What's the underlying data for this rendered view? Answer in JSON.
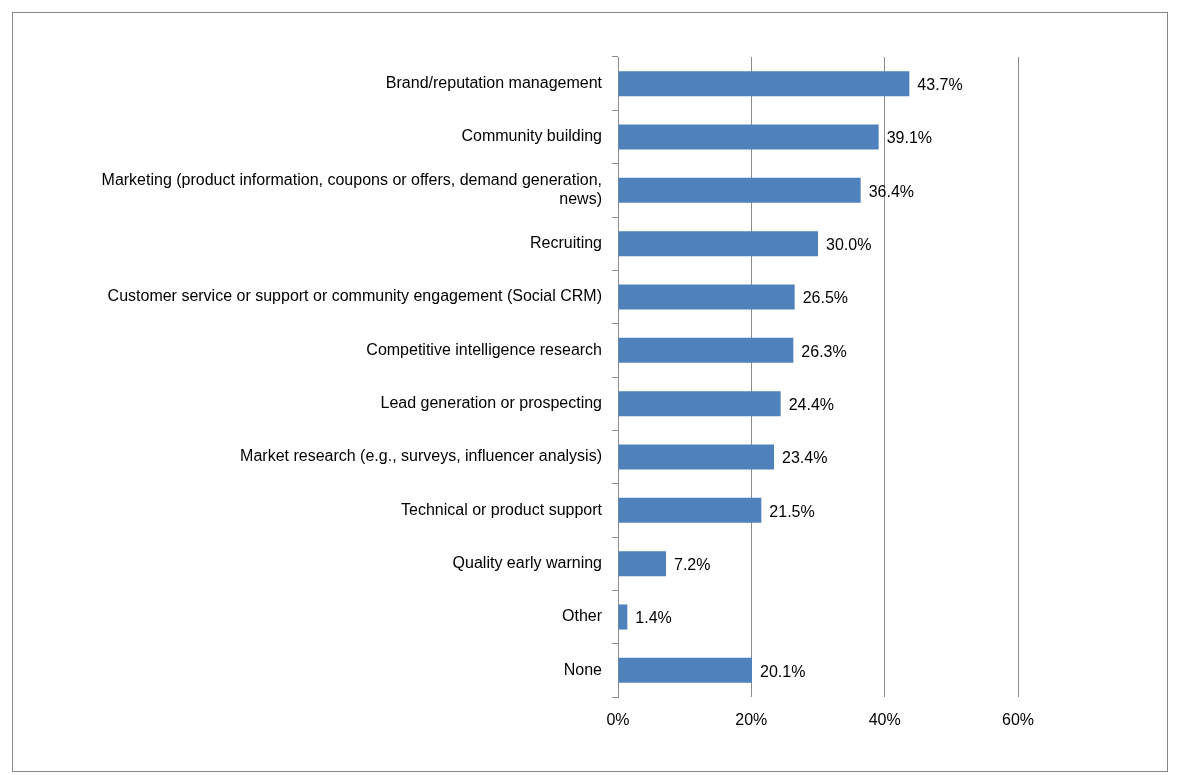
{
  "chart_data": {
    "type": "bar",
    "orientation": "horizontal",
    "categories": [
      "Brand/reputation management",
      "Community building",
      "Marketing (product information, coupons or offers, demand generation, news)",
      "Recruiting",
      "Customer service or support or community engagement (Social CRM)",
      "Competitive intelligence research",
      "Lead generation or prospecting",
      "Market research (e.g., surveys, influencer analysis)",
      "Technical or product support",
      "Quality early warning",
      "Other",
      "None"
    ],
    "values": [
      43.7,
      39.1,
      36.4,
      30.0,
      26.5,
      26.3,
      24.4,
      23.4,
      21.5,
      7.2,
      1.4,
      20.1
    ],
    "value_labels": [
      "43.7%",
      "39.1%",
      "36.4%",
      "30.0%",
      "26.5%",
      "26.3%",
      "24.4%",
      "23.4%",
      "21.5%",
      "7.2%",
      "1.4%",
      "20.1%"
    ],
    "color": "#4f81bd",
    "xlim": [
      0,
      60
    ],
    "xticks": [
      {
        "value": 0,
        "label": "0%"
      },
      {
        "value": 20,
        "label": "20%"
      },
      {
        "value": 40,
        "label": "40%"
      },
      {
        "value": 60,
        "label": "60%"
      }
    ],
    "grid": "x",
    "legend": false
  }
}
